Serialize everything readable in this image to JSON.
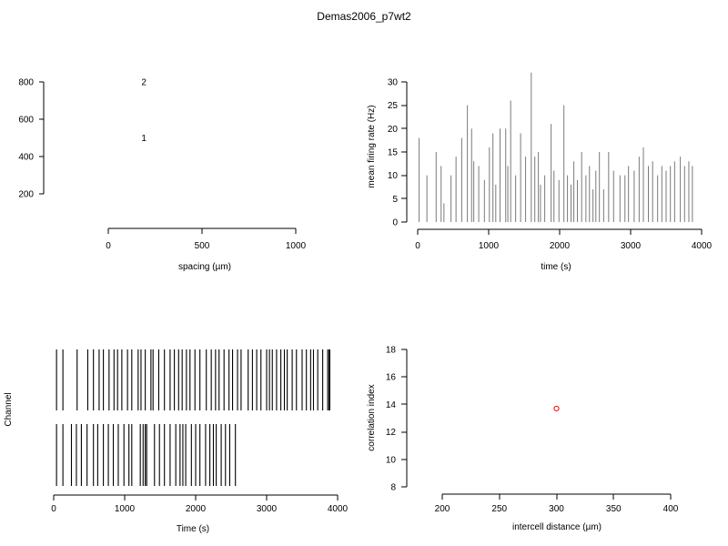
{
  "figure_title": "Demas2006_p7wt2",
  "chart_data": [
    {
      "id": "electrode-layout",
      "type": "scatter",
      "xlabel": "spacing (µm)",
      "ylabel": "",
      "xlim": [
        0,
        1000
      ],
      "ylim": [
        200,
        800
      ],
      "xticks": [
        0,
        500,
        1000
      ],
      "yticks": [
        200,
        400,
        600,
        800
      ],
      "points": [
        {
          "label": "1",
          "x": 190,
          "y": 500
        },
        {
          "label": "2",
          "x": 190,
          "y": 800
        }
      ]
    },
    {
      "id": "firing-rate",
      "type": "bar",
      "xlabel": "time (s)",
      "ylabel": "mean firing rate (Hz)",
      "xlim": [
        0,
        4000
      ],
      "ylim": [
        0,
        30
      ],
      "xticks": [
        0,
        1000,
        2000,
        3000,
        4000
      ],
      "yticks": [
        0,
        5,
        10,
        15,
        20,
        25,
        30
      ],
      "x": [
        20,
        130,
        260,
        330,
        370,
        470,
        540,
        620,
        700,
        760,
        790,
        860,
        940,
        1010,
        1060,
        1100,
        1160,
        1240,
        1270,
        1310,
        1380,
        1450,
        1520,
        1600,
        1650,
        1700,
        1730,
        1790,
        1880,
        1920,
        1990,
        2060,
        2110,
        2160,
        2200,
        2250,
        2310,
        2370,
        2420,
        2470,
        2510,
        2560,
        2620,
        2690,
        2760,
        2850,
        2920,
        2970,
        3050,
        3120,
        3180,
        3250,
        3310,
        3380,
        3440,
        3500,
        3560,
        3620,
        3700,
        3760,
        3820,
        3870
      ],
      "values": [
        18,
        10,
        15,
        12,
        4,
        10,
        14,
        18,
        25,
        20,
        13,
        12,
        9,
        16,
        19,
        8,
        20,
        20,
        12,
        26,
        10,
        19,
        14,
        32,
        14,
        15,
        8,
        10,
        21,
        11,
        9,
        25,
        10,
        8,
        13,
        9,
        15,
        10,
        12,
        7,
        11,
        15,
        7,
        15,
        11,
        10,
        10,
        12,
        11,
        14,
        16,
        12,
        13,
        10,
        12,
        11,
        12,
        13,
        14,
        12,
        13,
        12
      ]
    },
    {
      "id": "spike-raster",
      "type": "scatter",
      "xlabel": "Time (s)",
      "ylabel": "Channel",
      "xlim": [
        0,
        4000
      ],
      "xticks": [
        0,
        1000,
        2000,
        3000,
        4000
      ],
      "series": [
        {
          "channel": 1,
          "times": [
            40,
            130,
            250,
            320,
            390,
            470,
            560,
            620,
            700,
            770,
            840,
            910,
            990,
            1060,
            1100,
            1220,
            1260,
            1290,
            1310,
            1420,
            1490,
            1560,
            1640,
            1720,
            1780,
            1820,
            1860,
            1940,
            2000,
            2060,
            2140,
            2200,
            2250,
            2290,
            2360,
            2420,
            2480,
            2560
          ]
        },
        {
          "channel": 2,
          "times": [
            40,
            130,
            330,
            480,
            560,
            640,
            700,
            780,
            850,
            900,
            960,
            1040,
            1100,
            1190,
            1230,
            1290,
            1370,
            1400,
            1480,
            1560,
            1640,
            1700,
            1760,
            1810,
            1870,
            1920,
            1990,
            2060,
            2150,
            2220,
            2280,
            2330,
            2400,
            2470,
            2520,
            2590,
            2640,
            2740,
            2800,
            2860,
            2920,
            3000,
            3040,
            3080,
            3140,
            3200,
            3250,
            3290,
            3360,
            3420,
            3500,
            3560,
            3620,
            3660,
            3720,
            3790,
            3860,
            3880,
            3890
          ]
        }
      ]
    },
    {
      "id": "correlation-index",
      "type": "scatter",
      "xlabel": "intercell distance (µm)",
      "ylabel": "correlation index",
      "xlim": [
        200,
        400
      ],
      "ylim": [
        8,
        18
      ],
      "xticks": [
        200,
        250,
        300,
        350,
        400
      ],
      "yticks": [
        8,
        10,
        12,
        14,
        16,
        18
      ],
      "points": [
        {
          "x": 300,
          "y": 13.7
        }
      ],
      "point_color": "#ff0000"
    }
  ]
}
